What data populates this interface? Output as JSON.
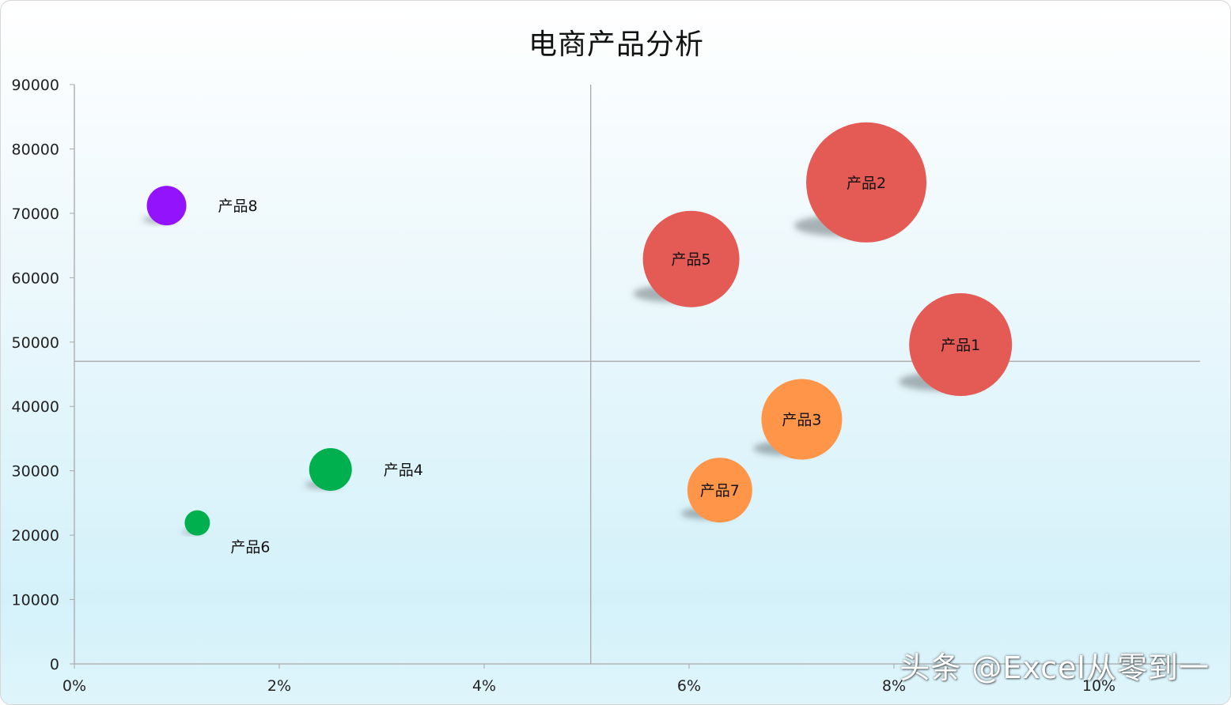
{
  "chart_data": {
    "type": "bubble",
    "title": "电商产品分析",
    "xlabel": "",
    "ylabel": "",
    "xlim": [
      0,
      0.11
    ],
    "ylim": [
      0,
      90000
    ],
    "x_ticks": [
      0,
      0.02,
      0.04,
      0.06,
      0.08,
      0.1
    ],
    "x_tick_labels": [
      "0%",
      "2%",
      "4%",
      "6%",
      "8%",
      "10%"
    ],
    "y_ticks": [
      0,
      10000,
      20000,
      30000,
      40000,
      50000,
      60000,
      70000,
      80000,
      90000
    ],
    "y_tick_labels": [
      "0",
      "10000",
      "20000",
      "30000",
      "40000",
      "50000",
      "60000",
      "70000",
      "80000",
      "90000"
    ],
    "reference_lines": {
      "x": 0.0504,
      "y": 47000
    },
    "grid": false,
    "legend": "none",
    "colors": {
      "red": "#e45a55",
      "orange": "#fe9549",
      "green": "#00b04f",
      "purple": "#9213fc"
    },
    "points": [
      {
        "label": "产品1",
        "x": 0.0865,
        "y": 49600,
        "size": 65,
        "color": "red",
        "label_position": "center"
      },
      {
        "label": "产品2",
        "x": 0.0773,
        "y": 74800,
        "size": 76,
        "color": "red",
        "label_position": "center"
      },
      {
        "label": "产品3",
        "x": 0.071,
        "y": 38000,
        "size": 51,
        "color": "orange",
        "label_position": "center"
      },
      {
        "label": "产品4",
        "x": 0.025,
        "y": 30200,
        "size": 27,
        "color": "green",
        "label_position": "right"
      },
      {
        "label": "产品5",
        "x": 0.0602,
        "y": 62900,
        "size": 61,
        "color": "red",
        "label_position": "center"
      },
      {
        "label": "产品6",
        "x": 0.012,
        "y": 21900,
        "size": 16,
        "color": "green",
        "label_position": "below-right"
      },
      {
        "label": "产品7",
        "x": 0.063,
        "y": 27000,
        "size": 41,
        "color": "orange",
        "label_position": "center"
      },
      {
        "label": "产品8",
        "x": 0.009,
        "y": 71200,
        "size": 25,
        "color": "purple",
        "label_position": "right"
      }
    ]
  },
  "watermark": "头条 @Excel从零到一"
}
